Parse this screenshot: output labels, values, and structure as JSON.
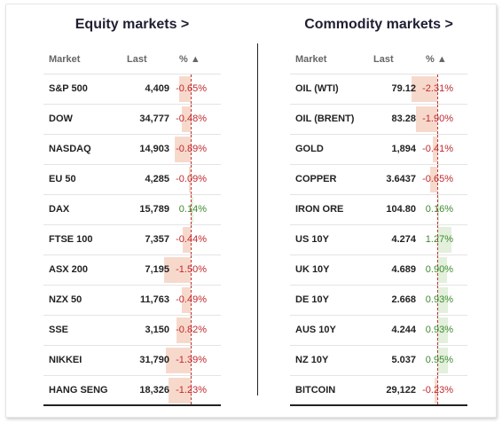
{
  "equity": {
    "title": "Equity markets >",
    "headers": {
      "market": "Market",
      "last": "Last",
      "pct": "% ▲"
    },
    "rows": [
      {
        "market": "S&P 500",
        "last": "4,409",
        "pct": "-0.65%",
        "value": -0.65
      },
      {
        "market": "DOW",
        "last": "34,777",
        "pct": "-0.48%",
        "value": -0.48
      },
      {
        "market": "NASDAQ",
        "last": "14,903",
        "pct": "-0.89%",
        "value": -0.89
      },
      {
        "market": "EU 50",
        "last": "4,285",
        "pct": "-0.09%",
        "value": -0.09
      },
      {
        "market": "DAX",
        "last": "15,789",
        "pct": "0.14%",
        "value": 0.14
      },
      {
        "market": "FTSE 100",
        "last": "7,357",
        "pct": "-0.44%",
        "value": -0.44
      },
      {
        "market": "ASX 200",
        "last": "7,195",
        "pct": "-1.50%",
        "value": -1.5
      },
      {
        "market": "NZX 50",
        "last": "11,763",
        "pct": "-0.49%",
        "value": -0.49
      },
      {
        "market": "SSE",
        "last": "3,150",
        "pct": "-0.82%",
        "value": -0.82
      },
      {
        "market": "NIKKEI",
        "last": "31,790",
        "pct": "-1.39%",
        "value": -1.39
      },
      {
        "market": "HANG SENG",
        "last": "18,326",
        "pct": "-1.23%",
        "value": -1.23
      }
    ]
  },
  "commodity": {
    "title": "Commodity markets >",
    "headers": {
      "market": "Market",
      "last": "Last",
      "pct": "% ▲"
    },
    "rows": [
      {
        "market": "OIL (WTI)",
        "last": "79.12",
        "pct": "-2.31%",
        "value": -2.31
      },
      {
        "market": "OIL (BRENT)",
        "last": "83.28",
        "pct": "-1.90%",
        "value": -1.9
      },
      {
        "market": "GOLD",
        "last": "1,894",
        "pct": "-0.41%",
        "value": -0.41
      },
      {
        "market": "COPPER",
        "last": "3.6437",
        "pct": "-0.65%",
        "value": -0.65
      },
      {
        "market": "IRON ORE",
        "last": "104.80",
        "pct": "0.16%",
        "value": 0.16
      },
      {
        "market": "US 10Y",
        "last": "4.274",
        "pct": "1.27%",
        "value": 1.27
      },
      {
        "market": "UK 10Y",
        "last": "4.689",
        "pct": "0.90%",
        "value": 0.9
      },
      {
        "market": "DE 10Y",
        "last": "2.668",
        "pct": "0.93%",
        "value": 0.93
      },
      {
        "market": "AUS 10Y",
        "last": "4.244",
        "pct": "0.93%",
        "value": 0.93
      },
      {
        "market": "NZ 10Y",
        "last": "5.037",
        "pct": "0.95%",
        "value": 0.95
      },
      {
        "market": "BITCOIN",
        "last": "29,122",
        "pct": "-0.23%",
        "value": -0.23
      }
    ]
  },
  "colors": {
    "negative": "#c0282c",
    "positive": "#3d8a2f",
    "neg_bar": "#f7d9cc",
    "pos_bar": "#e3f0dc"
  }
}
